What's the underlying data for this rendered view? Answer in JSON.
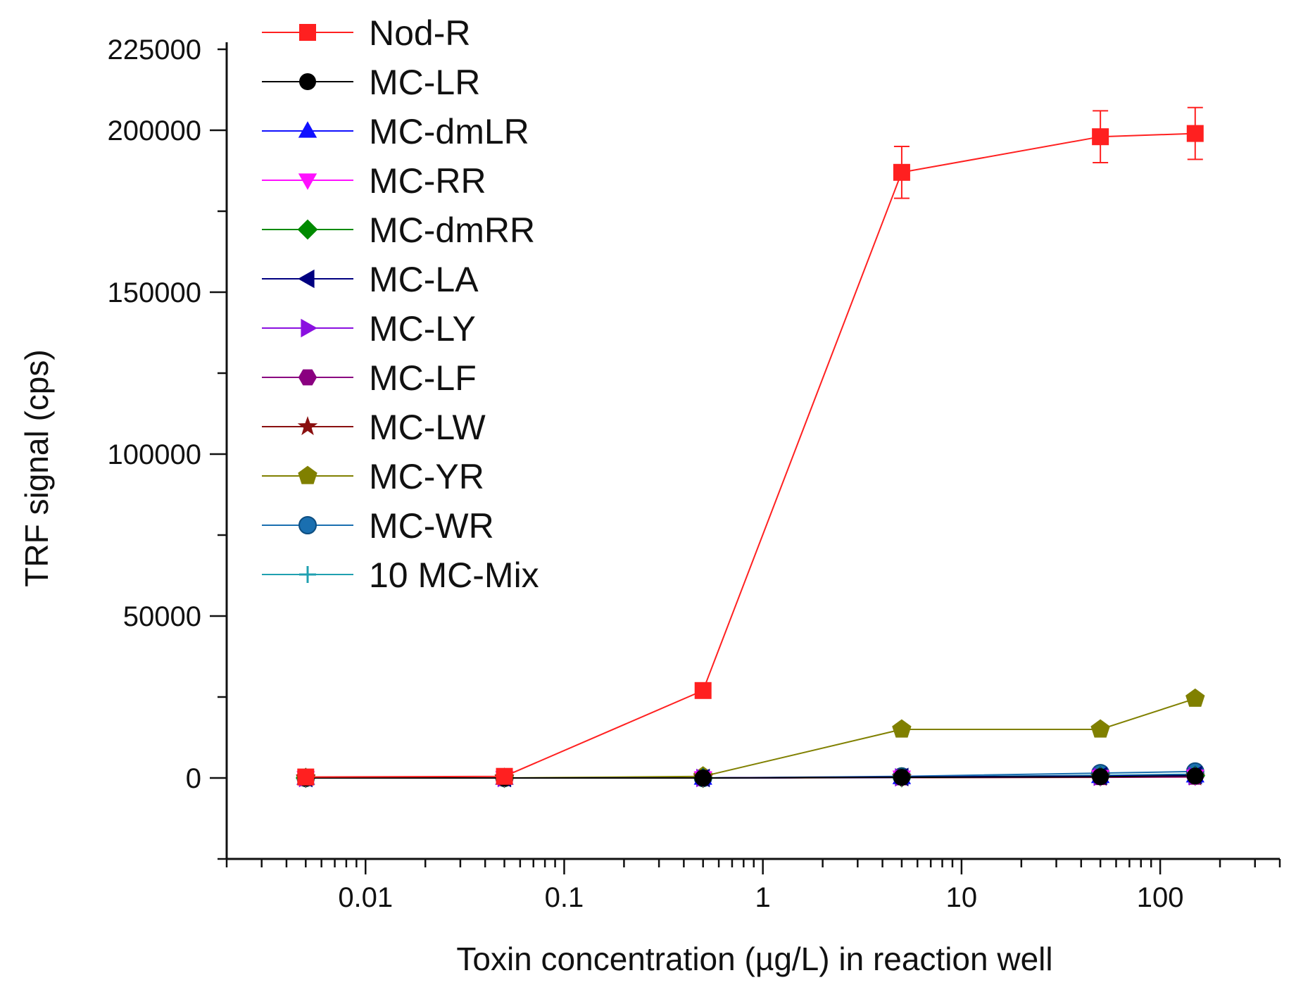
{
  "chart_data": {
    "type": "line",
    "xlabel": "Toxin concentration (µg/L) in reaction well",
    "ylabel": "TRF signal (cps)",
    "xscale": "log",
    "xlim": [
      0.002,
      400
    ],
    "ylim": [
      -25000,
      225000
    ],
    "x_tick_labels": [
      {
        "value": 0.01,
        "label": "0.01"
      },
      {
        "value": 0.1,
        "label": "0.1"
      },
      {
        "value": 1,
        "label": "1"
      },
      {
        "value": 10,
        "label": "10"
      },
      {
        "value": 100,
        "label": "100"
      }
    ],
    "y_tick_labels": [
      {
        "value": 0,
        "label": "0"
      },
      {
        "value": 50000,
        "label": "50000"
      },
      {
        "value": 100000,
        "label": "100000"
      },
      {
        "value": 150000,
        "label": "150000"
      },
      {
        "value": 200000,
        "label": "200000"
      },
      {
        "value": 225000,
        "label": "225000"
      }
    ],
    "legend_position": "top-left",
    "x": [
      0.005,
      0.05,
      0.5,
      5,
      50,
      150
    ],
    "series": [
      {
        "name": "Nod-R",
        "color": "#ff2020",
        "marker": "square",
        "values": [
          300,
          500,
          27000,
          187000,
          198000,
          199000
        ],
        "errors": [
          0,
          0,
          0,
          8000,
          8000,
          8000
        ]
      },
      {
        "name": "MC-LR",
        "color": "#000000",
        "marker": "circle",
        "values": [
          0,
          0,
          0,
          200,
          400,
          600
        ]
      },
      {
        "name": "MC-dmLR",
        "color": "#1010ff",
        "marker": "triangle-up",
        "values": [
          0,
          0,
          0,
          200,
          500,
          700
        ]
      },
      {
        "name": "MC-RR",
        "color": "#ff10ff",
        "marker": "triangle-down",
        "values": [
          0,
          0,
          0,
          200,
          400,
          500
        ]
      },
      {
        "name": "MC-dmRR",
        "color": "#008a00",
        "marker": "diamond",
        "values": [
          0,
          0,
          0,
          200,
          500,
          700
        ]
      },
      {
        "name": "MC-LA",
        "color": "#000080",
        "marker": "triangle-left",
        "values": [
          0,
          0,
          0,
          300,
          600,
          900
        ]
      },
      {
        "name": "MC-LY",
        "color": "#8a10e0",
        "marker": "triangle-right",
        "values": [
          0,
          0,
          0,
          200,
          400,
          600
        ]
      },
      {
        "name": "MC-LF",
        "color": "#8a0080",
        "marker": "hexagon",
        "values": [
          0,
          0,
          0,
          200,
          300,
          400
        ]
      },
      {
        "name": "MC-LW",
        "color": "#8a1010",
        "marker": "star",
        "values": [
          0,
          0,
          0,
          100,
          200,
          300
        ]
      },
      {
        "name": "MC-YR",
        "color": "#808000",
        "marker": "pentagon",
        "values": [
          0,
          0,
          500,
          15000,
          15000,
          24500
        ]
      },
      {
        "name": "MC-WR",
        "color": "#1a6fb0",
        "marker": "sphere",
        "values": [
          0,
          0,
          0,
          500,
          1500,
          2000
        ]
      },
      {
        "name": "10 MC-Mix",
        "color": "#20a0b0",
        "marker": "plus",
        "values": [
          0,
          0,
          0,
          300,
          800,
          1200
        ]
      }
    ]
  }
}
